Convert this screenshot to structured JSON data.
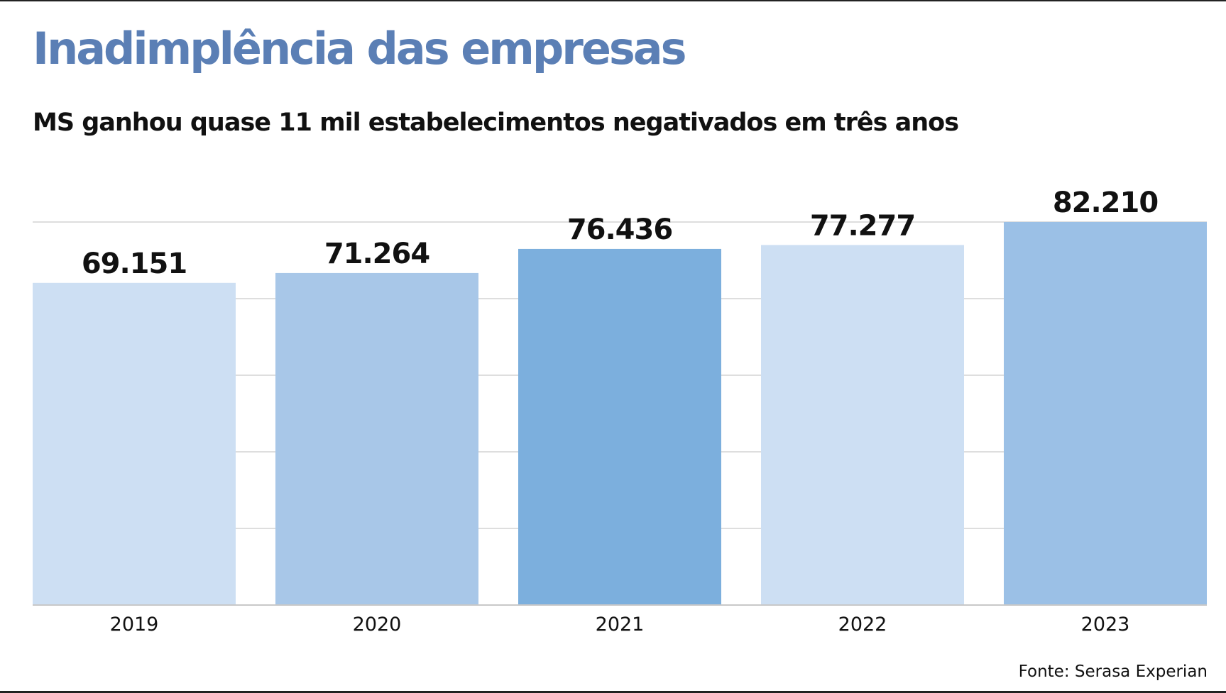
{
  "header": {
    "title": "Inadimplência das empresas",
    "subtitle": "MS ganhou quase 11 mil estabelecimentos negativados em três anos"
  },
  "colors": {
    "title": "#5b7fb5",
    "gridline": "#d4d4d4",
    "baseline": "#c8c8c8",
    "value_label": "#111111",
    "bar_palette": [
      "#cddff3",
      "#a8c7e8",
      "#7cafdd",
      "#cddff3",
      "#9bc0e6"
    ]
  },
  "chart_data": {
    "type": "bar",
    "categories": [
      "2019",
      "2020",
      "2021",
      "2022",
      "2023"
    ],
    "values": [
      69151,
      71264,
      76436,
      77277,
      82210
    ],
    "value_labels": [
      "69.151",
      "71.264",
      "76.436",
      "77.277",
      "82.210"
    ],
    "ylim": [
      0,
      82210
    ],
    "grid": true,
    "gridline_count": 5,
    "title": "",
    "xlabel": "",
    "ylabel": ""
  },
  "footer": {
    "source": "Fonte: Serasa Experian"
  }
}
